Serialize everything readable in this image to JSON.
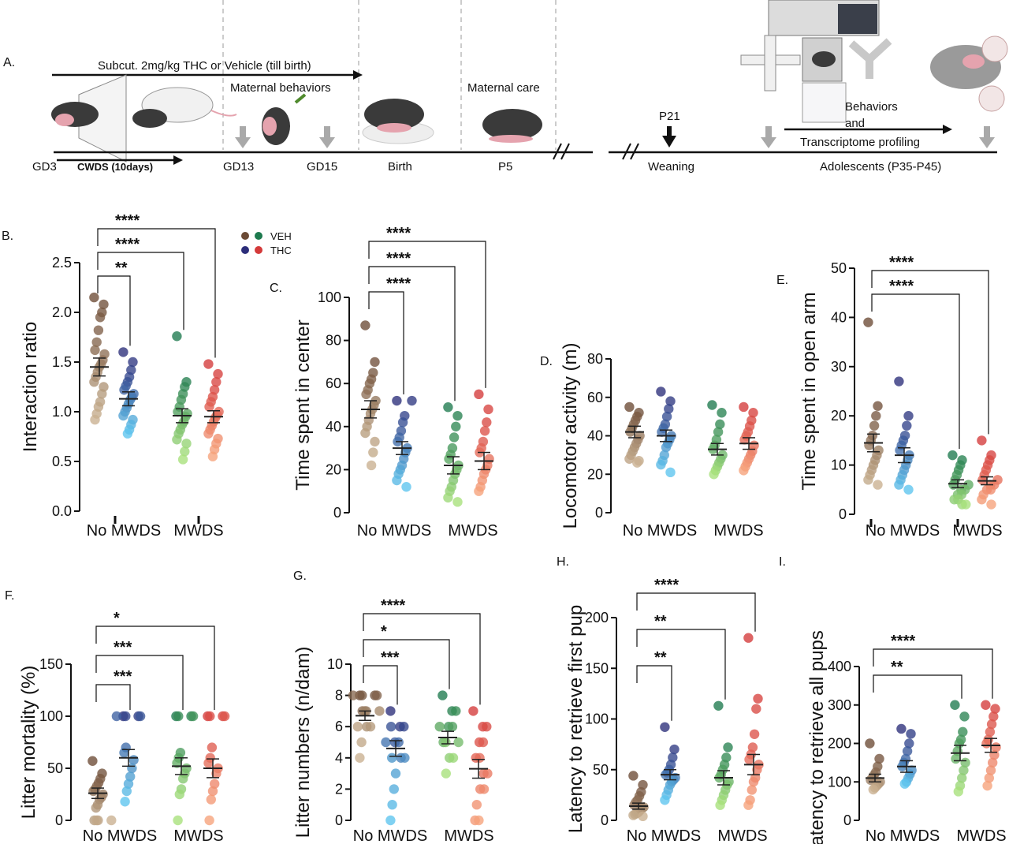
{
  "panel_a": {
    "letter": "A.",
    "treatment": "Subcut. 2mg/kg  THC or Vehicle (till birth)",
    "maternal_behaviors": "Maternal behaviors",
    "maternal_care": "Maternal care",
    "cwds": "CWDS (10days)",
    "p21": "P21",
    "behaviors": "Behaviors",
    "and": "and",
    "transcriptome": "Transcriptome profiling",
    "timeline": [
      "GD3",
      "GD13",
      "GD15",
      "Birth",
      "P5",
      "Weaning",
      "Adolescents (P35-P45)"
    ],
    "colors": {
      "rat_white": "#f1f1f1",
      "rat_dark": "#3a3a3a",
      "pink": "#e5a3ae",
      "green_leaf": "#4f8a2c",
      "arrow_gray": "#a9a9a9"
    }
  },
  "legend": {
    "veh_label": "VEH",
    "thc_label": "THC",
    "veh_colors": [
      "#6b4a35",
      "#1e7a4e"
    ],
    "thc_colors": [
      "#2c2e7a",
      "#d43a3a"
    ]
  },
  "chart_data": [
    {
      "letter": "B.",
      "type": "scatter",
      "ylabel": "Interaction ratio",
      "ylim": [
        0,
        2.5
      ],
      "yticks": [
        "0.0",
        "0.5",
        "1.0",
        "1.5",
        "2.0",
        "2.5"
      ],
      "categories": [
        "No MWDS",
        "MWDS"
      ],
      "groups": [
        {
          "name": "No MWDS VEH",
          "mean": 1.45,
          "sem": 0.09,
          "values": [
            2.15,
            2.08,
            2.0,
            1.95,
            1.82,
            1.7,
            1.62,
            1.58,
            1.52,
            1.48,
            1.45,
            1.4,
            1.35,
            1.3,
            1.25,
            1.18,
            1.1,
            1.05,
            0.98,
            0.92
          ]
        },
        {
          "name": "No MWDS THC",
          "mean": 1.13,
          "sem": 0.07,
          "values": [
            1.6,
            1.5,
            1.42,
            1.35,
            1.3,
            1.26,
            1.22,
            1.18,
            1.15,
            1.12,
            1.08,
            1.04,
            1.0,
            0.96,
            0.92,
            0.87,
            0.82,
            0.78
          ]
        },
        {
          "name": "MWDS VEH",
          "mean": 0.96,
          "sem": 0.07,
          "values": [
            1.76,
            1.3,
            1.25,
            1.18,
            1.12,
            1.05,
            1.0,
            0.98,
            0.95,
            0.9,
            0.87,
            0.82,
            0.78,
            0.72,
            0.68,
            0.6,
            0.52
          ]
        },
        {
          "name": "MWDS THC",
          "mean": 0.95,
          "sem": 0.06,
          "values": [
            1.48,
            1.38,
            1.3,
            1.22,
            1.15,
            1.1,
            1.05,
            1.0,
            0.97,
            0.94,
            0.9,
            0.86,
            0.82,
            0.78,
            0.73,
            0.68,
            0.62,
            0.55
          ]
        }
      ],
      "comparisons": [
        {
          "to": 1,
          "label": "**"
        },
        {
          "to": 2,
          "label": "****"
        },
        {
          "to": 3,
          "label": "****"
        }
      ]
    },
    {
      "letter": "C.",
      "type": "scatter",
      "ylabel": "Time spent in center",
      "ylim": [
        0,
        100
      ],
      "yticks": [
        "0",
        "20",
        "40",
        "60",
        "80",
        "100"
      ],
      "categories": [
        "No MWDS",
        "MWDS"
      ],
      "groups": [
        {
          "name": "No MWDS VEH",
          "mean": 48,
          "sem": 4,
          "values": [
            87,
            70,
            65,
            62,
            60,
            57,
            55,
            52,
            50,
            48,
            46,
            43,
            40,
            37,
            33,
            28,
            22
          ]
        },
        {
          "name": "No MWDS THC",
          "mean": 30,
          "sem": 3,
          "values": [
            52,
            52,
            45,
            42,
            38,
            35,
            33,
            30,
            28,
            25,
            22,
            20,
            18,
            15,
            12
          ]
        },
        {
          "name": "MWDS VEH",
          "mean": 22,
          "sem": 4,
          "values": [
            49,
            45,
            40,
            35,
            30,
            27,
            25,
            22,
            20,
            18,
            15,
            12,
            10,
            7,
            5
          ]
        },
        {
          "name": "MWDS THC",
          "mean": 24,
          "sem": 4,
          "values": [
            55,
            48,
            42,
            38,
            33,
            30,
            28,
            25,
            22,
            20,
            18,
            15,
            12,
            10
          ]
        }
      ],
      "comparisons": [
        {
          "to": 1,
          "label": "****"
        },
        {
          "to": 2,
          "label": "****"
        },
        {
          "to": 3,
          "label": "****"
        }
      ]
    },
    {
      "letter": "D.",
      "type": "scatter",
      "ylabel": "Locomotor activity (m)",
      "ylim": [
        0,
        80
      ],
      "yticks": [
        "0",
        "20",
        "40",
        "60",
        "80"
      ],
      "categories": [
        "No MWDS",
        "MWDS"
      ],
      "groups": [
        {
          "name": "No MWDS VEH",
          "mean": 42,
          "sem": 3,
          "values": [
            55,
            52,
            50,
            48,
            46,
            44,
            42,
            40,
            38,
            36,
            34,
            32,
            30,
            28,
            27,
            26
          ]
        },
        {
          "name": "No MWDS THC",
          "mean": 40,
          "sem": 3,
          "values": [
            63,
            58,
            54,
            50,
            46,
            44,
            42,
            40,
            38,
            36,
            34,
            30,
            27,
            25,
            21
          ]
        },
        {
          "name": "MWDS VEH",
          "mean": 33,
          "sem": 3,
          "values": [
            56,
            52,
            46,
            42,
            38,
            35,
            33,
            30,
            28,
            26,
            24,
            22,
            20
          ]
        },
        {
          "name": "MWDS THC",
          "mean": 36,
          "sem": 3,
          "values": [
            55,
            52,
            48,
            45,
            42,
            40,
            38,
            35,
            32,
            30,
            28,
            26,
            24,
            22
          ]
        }
      ],
      "comparisons": []
    },
    {
      "letter": "E.",
      "type": "scatter",
      "ylabel": "Time spent in open arm",
      "ylim": [
        0,
        50
      ],
      "yticks": [
        "0",
        "10",
        "20",
        "30",
        "40",
        "50"
      ],
      "categories": [
        "No MWDS",
        "MWDS"
      ],
      "groups": [
        {
          "name": "No MWDS VEH",
          "mean": 14.5,
          "sem": 1.8,
          "values": [
            39,
            22,
            20,
            18,
            16,
            15,
            14,
            13,
            12,
            11,
            10,
            9,
            8,
            7,
            6
          ]
        },
        {
          "name": "No MWDS THC",
          "mean": 12,
          "sem": 1.5,
          "values": [
            27,
            20,
            18,
            16,
            15,
            14,
            13,
            12,
            11,
            10,
            9,
            8,
            7,
            6,
            5
          ]
        },
        {
          "name": "MWDS VEH",
          "mean": 6.2,
          "sem": 0.8,
          "values": [
            12,
            11,
            10,
            9,
            8,
            7,
            6,
            6,
            5,
            5,
            4,
            4,
            3,
            3,
            2,
            2
          ]
        },
        {
          "name": "MWDS THC",
          "mean": 6.8,
          "sem": 0.8,
          "values": [
            15,
            12,
            11,
            10,
            9,
            8,
            7,
            7,
            6,
            6,
            5,
            5,
            4,
            3,
            2
          ]
        }
      ],
      "comparisons": [
        {
          "to": 2,
          "label": "****"
        },
        {
          "to": 3,
          "label": "****"
        }
      ]
    },
    {
      "letter": "F.",
      "type": "scatter",
      "ylabel": "Litter mortality (%)",
      "ylim": [
        0,
        150
      ],
      "yticks": [
        "0",
        "50",
        "100",
        "150"
      ],
      "categories": [
        "No MWDS",
        "MWDS"
      ],
      "groups": [
        {
          "name": "No MWDS VEH",
          "mean": 26,
          "sem": 5,
          "values": [
            57,
            45,
            40,
            36,
            33,
            30,
            28,
            25,
            22,
            20,
            15,
            12,
            0,
            0,
            0,
            0
          ]
        },
        {
          "name": "No MWDS THC",
          "mean": 60,
          "sem": 8,
          "values": [
            100,
            100,
            100,
            100,
            100,
            70,
            65,
            58,
            50,
            42,
            35,
            28,
            18
          ]
        },
        {
          "name": "MWDS VEH",
          "mean": 52,
          "sem": 8,
          "values": [
            100,
            100,
            100,
            100,
            65,
            60,
            55,
            50,
            45,
            40,
            30,
            25,
            0
          ]
        },
        {
          "name": "MWDS THC",
          "mean": 50,
          "sem": 9,
          "values": [
            100,
            100,
            100,
            100,
            70,
            60,
            55,
            50,
            45,
            35,
            28,
            20,
            0
          ]
        }
      ],
      "comparisons": [
        {
          "to": 1,
          "label": "***"
        },
        {
          "to": 2,
          "label": "***"
        },
        {
          "to": 3,
          "label": "*"
        }
      ]
    },
    {
      "letter": "G.",
      "type": "scatter",
      "ylabel": "Litter numbers (n/dam)",
      "ylim": [
        0,
        10
      ],
      "yticks": [
        "0",
        "2",
        "4",
        "6",
        "8",
        "10"
      ],
      "categories": [
        "No MWDS",
        "MWDS"
      ],
      "groups": [
        {
          "name": "No MWDS VEH",
          "mean": 6.7,
          "sem": 0.3,
          "values": [
            8,
            8,
            8,
            8,
            8,
            7,
            7,
            7,
            7,
            6,
            6,
            6,
            5,
            4
          ]
        },
        {
          "name": "No MWDS THC",
          "mean": 4.6,
          "sem": 0.5,
          "values": [
            7,
            6,
            6,
            6,
            5,
            5,
            5,
            4,
            4,
            4,
            3,
            2,
            1,
            0
          ]
        },
        {
          "name": "MWDS VEH",
          "mean": 5.3,
          "sem": 0.4,
          "values": [
            8,
            7,
            7,
            6,
            6,
            6,
            5,
            5,
            5,
            4,
            4,
            3
          ]
        },
        {
          "name": "MWDS THC",
          "mean": 3.3,
          "sem": 0.6,
          "values": [
            7,
            6,
            6,
            5,
            5,
            4,
            4,
            3,
            3,
            2,
            2,
            1,
            0,
            0
          ]
        }
      ],
      "comparisons": [
        {
          "to": 1,
          "label": "***"
        },
        {
          "to": 2,
          "label": "*"
        },
        {
          "to": 3,
          "label": "****"
        }
      ]
    },
    {
      "letter": "H.",
      "type": "scatter",
      "ylabel": "Latency to retrieve first pup",
      "ylim": [
        0,
        200
      ],
      "yticks": [
        "0",
        "50",
        "100",
        "150",
        "200"
      ],
      "categories": [
        "No MWDS",
        "MWDS"
      ],
      "groups": [
        {
          "name": "No MWDS VEH",
          "mean": 14,
          "sem": 3,
          "values": [
            44,
            35,
            28,
            24,
            20,
            18,
            15,
            13,
            12,
            10,
            8,
            7,
            6,
            5,
            4
          ]
        },
        {
          "name": "No MWDS THC",
          "mean": 45,
          "sem": 5,
          "values": [
            92,
            70,
            62,
            55,
            50,
            47,
            45,
            42,
            40,
            38,
            35,
            30,
            25,
            20
          ]
        },
        {
          "name": "MWDS VEH",
          "mean": 42,
          "sem": 7,
          "values": [
            113,
            72,
            62,
            55,
            50,
            45,
            42,
            38,
            35,
            30,
            25,
            20,
            15
          ]
        },
        {
          "name": "MWDS THC",
          "mean": 55,
          "sem": 10,
          "values": [
            180,
            120,
            110,
            85,
            72,
            65,
            60,
            55,
            50,
            42,
            38,
            30,
            20,
            15
          ]
        }
      ],
      "comparisons": [
        {
          "to": 1,
          "label": "**"
        },
        {
          "to": 2,
          "label": "**"
        },
        {
          "to": 3,
          "label": "****"
        }
      ]
    },
    {
      "letter": "I.",
      "type": "scatter",
      "ylabel": "Latency to retrieve all pups",
      "ylim": [
        0,
        400
      ],
      "yticks": [
        "0",
        "100",
        "200",
        "300",
        "400"
      ],
      "categories": [
        "No MWDS",
        "MWDS"
      ],
      "groups": [
        {
          "name": "No MWDS VEH",
          "mean": 110,
          "sem": 10,
          "values": [
            200,
            160,
            140,
            125,
            118,
            110,
            105,
            100,
            95,
            90,
            85,
            80
          ]
        },
        {
          "name": "No MWDS THC",
          "mean": 140,
          "sem": 15,
          "values": [
            238,
            225,
            200,
            180,
            160,
            150,
            140,
            130,
            120,
            110,
            100,
            95
          ]
        },
        {
          "name": "MWDS VEH",
          "mean": 175,
          "sem": 20,
          "values": [
            300,
            270,
            230,
            210,
            200,
            180,
            160,
            150,
            130,
            110,
            90,
            75
          ]
        },
        {
          "name": "MWDS THC",
          "mean": 195,
          "sem": 18,
          "values": [
            300,
            290,
            270,
            250,
            230,
            210,
            200,
            190,
            170,
            150,
            130,
            110,
            90
          ]
        }
      ],
      "comparisons": [
        {
          "to": 2,
          "label": "**"
        },
        {
          "to": 3,
          "label": "****"
        }
      ]
    }
  ]
}
